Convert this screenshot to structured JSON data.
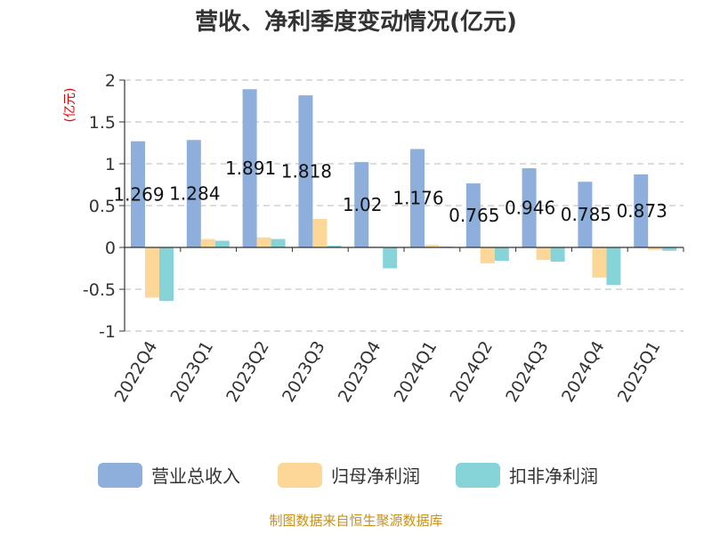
{
  "chart_data": {
    "type": "bar",
    "title": "营收、净利季度变动情况(亿元)",
    "ylabel": "(亿元)",
    "xlabel": "",
    "ylim": [
      -1,
      2
    ],
    "yticks": [
      2,
      1.5,
      1,
      0.5,
      0,
      -0.5,
      -1
    ],
    "ytick_labels": [
      "2",
      "1.5",
      "1",
      "0.5",
      "0",
      "-0.5",
      "-1"
    ],
    "grid": true,
    "legend_position": "bottom",
    "categories": [
      "2022Q4",
      "2023Q1",
      "2023Q2",
      "2023Q3",
      "2023Q4",
      "2024Q1",
      "2024Q2",
      "2024Q3",
      "2024Q4",
      "2025Q1"
    ],
    "series": [
      {
        "name": "营业总收入",
        "color": "#8eaedb",
        "values": [
          1.269,
          1.284,
          1.891,
          1.818,
          1.02,
          1.176,
          0.765,
          0.946,
          0.785,
          0.873
        ],
        "labels": [
          "1.269",
          "1.284",
          "1.891",
          "1.818",
          "1.02",
          "1.176",
          "0.765",
          "0.946",
          "0.785",
          "0.873"
        ]
      },
      {
        "name": "归母净利润",
        "color": "#fdd798",
        "values": [
          -0.6,
          0.1,
          0.12,
          0.34,
          0.01,
          0.03,
          -0.19,
          -0.15,
          -0.36,
          -0.03
        ]
      },
      {
        "name": "扣非净利润",
        "color": "#86d4d8",
        "values": [
          -0.64,
          0.08,
          0.1,
          0.02,
          -0.25,
          0.01,
          -0.16,
          -0.17,
          -0.45,
          -0.04
        ]
      }
    ]
  },
  "source_note": "制图数据来自恒生聚源数据库"
}
